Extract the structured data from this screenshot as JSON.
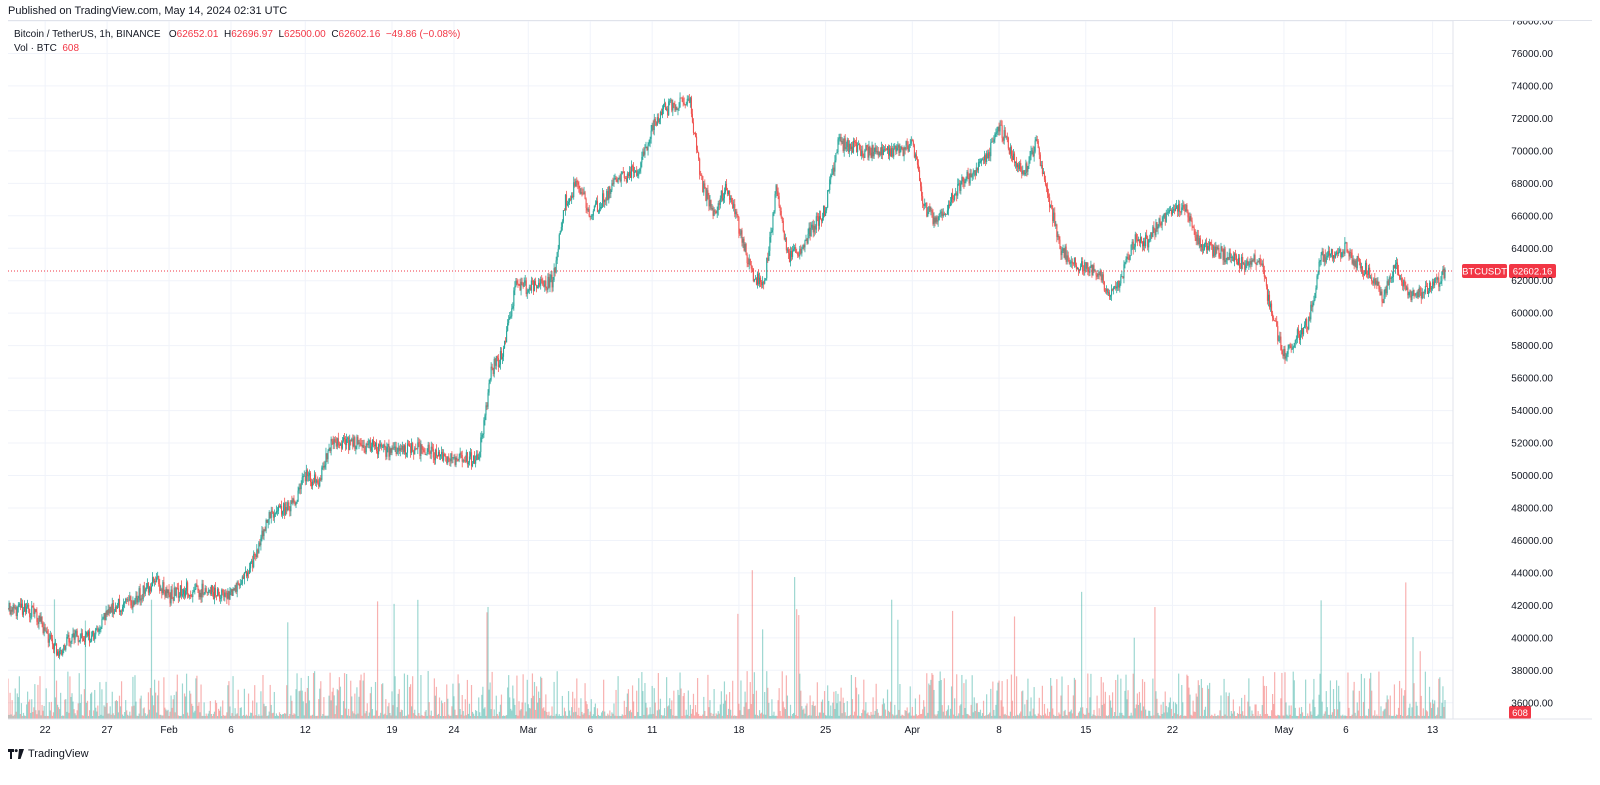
{
  "header": {
    "published": "Published on TradingView.com, May 14, 2024 02:31 UTC"
  },
  "legend": {
    "symbol": "Bitcoin / TetherUS, 1h, BINANCE",
    "open_label": "O",
    "open": "62652.01",
    "high_label": "H",
    "high": "62696.97",
    "low_label": "L",
    "low": "62500.00",
    "close_label": "C",
    "close": "62602.16",
    "change": "−49.86 (−0.08%)",
    "volume_label": "Vol · BTC",
    "volume": "608"
  },
  "footer": {
    "brand": "TradingView",
    "logo_icon": "tradingview-logo-icon"
  },
  "colors": {
    "up": "#26a69a",
    "down": "#ef5350",
    "price_tag": "#f23645",
    "grid": "#f0f3fa",
    "text": "#131722"
  },
  "chart_data": {
    "type": "candlestick",
    "symbol_tag": "BTCUSDT",
    "last_price": "62602.16",
    "last_price_value": 62602.16,
    "volume_tag": "608",
    "volume_tag_value": 608,
    "y_axis": {
      "ylim": [
        35000,
        78000
      ],
      "ticks": [
        "36000.00",
        "38000.00",
        "40000.00",
        "42000.00",
        "44000.00",
        "46000.00",
        "48000.00",
        "50000.00",
        "52000.00",
        "54000.00",
        "56000.00",
        "58000.00",
        "60000.00",
        "62000.00",
        "64000.00",
        "66000.00",
        "68000.00",
        "70000.00",
        "72000.00",
        "74000.00",
        "76000.00",
        "78000.00"
      ]
    },
    "x_axis": {
      "range": [
        "2024-01-19",
        "2024-05-14"
      ],
      "ticks": [
        {
          "label": "22",
          "date": "2024-01-22"
        },
        {
          "label": "27",
          "date": "2024-01-27"
        },
        {
          "label": "Feb",
          "date": "2024-02-01"
        },
        {
          "label": "6",
          "date": "2024-02-06"
        },
        {
          "label": "12",
          "date": "2024-02-12"
        },
        {
          "label": "19",
          "date": "2024-02-19"
        },
        {
          "label": "24",
          "date": "2024-02-24"
        },
        {
          "label": "Mar",
          "date": "2024-03-01"
        },
        {
          "label": "6",
          "date": "2024-03-06"
        },
        {
          "label": "11",
          "date": "2024-03-11"
        },
        {
          "label": "18",
          "date": "2024-03-18"
        },
        {
          "label": "25",
          "date": "2024-03-25"
        },
        {
          "label": "Apr",
          "date": "2024-04-01"
        },
        {
          "label": "8",
          "date": "2024-04-08"
        },
        {
          "label": "15",
          "date": "2024-04-15"
        },
        {
          "label": "22",
          "date": "2024-04-22"
        },
        {
          "label": "May",
          "date": "2024-05-01"
        },
        {
          "label": "6",
          "date": "2024-05-06"
        },
        {
          "label": "13",
          "date": "2024-05-13"
        }
      ]
    },
    "price_path": [
      [
        "2024-01-19",
        41800
      ],
      [
        "2024-01-21",
        41700
      ],
      [
        "2024-01-22",
        40500
      ],
      [
        "2024-01-23",
        39000
      ],
      [
        "2024-01-24",
        40000
      ],
      [
        "2024-01-26",
        40000
      ],
      [
        "2024-01-27",
        41700
      ],
      [
        "2024-01-29",
        42300
      ],
      [
        "2024-01-31",
        43500
      ],
      [
        "2024-02-01",
        42500
      ],
      [
        "2024-02-02",
        43000
      ],
      [
        "2024-02-05",
        42800
      ],
      [
        "2024-02-06",
        42700
      ],
      [
        "2024-02-08",
        45000
      ],
      [
        "2024-02-09",
        47500
      ],
      [
        "2024-02-11",
        48200
      ],
      [
        "2024-02-12",
        50000
      ],
      [
        "2024-02-13",
        49500
      ],
      [
        "2024-02-14",
        51800
      ],
      [
        "2024-02-16",
        52000
      ],
      [
        "2024-02-19",
        51500
      ],
      [
        "2024-02-21",
        51700
      ],
      [
        "2024-02-24",
        51000
      ],
      [
        "2024-02-26",
        51000
      ],
      [
        "2024-02-27",
        56500
      ],
      [
        "2024-02-28",
        57500
      ],
      [
        "2024-02-29",
        62000
      ],
      [
        "2024-03-01",
        61500
      ],
      [
        "2024-03-03",
        62000
      ],
      [
        "2024-03-04",
        67000
      ],
      [
        "2024-03-05",
        68000
      ],
      [
        "2024-03-06",
        66000
      ],
      [
        "2024-03-08",
        68000
      ],
      [
        "2024-03-10",
        69000
      ],
      [
        "2024-03-11",
        71500
      ],
      [
        "2024-03-12",
        72500
      ],
      [
        "2024-03-14",
        73300
      ],
      [
        "2024-03-15",
        68000
      ],
      [
        "2024-03-16",
        66000
      ],
      [
        "2024-03-17",
        68000
      ],
      [
        "2024-03-19",
        62500
      ],
      [
        "2024-03-20",
        61500
      ],
      [
        "2024-03-21",
        67500
      ],
      [
        "2024-03-22",
        63500
      ],
      [
        "2024-03-23",
        64000
      ],
      [
        "2024-03-25",
        66500
      ],
      [
        "2024-03-26",
        70500
      ],
      [
        "2024-03-28",
        70000
      ],
      [
        "2024-03-31",
        70000
      ],
      [
        "2024-04-01",
        70500
      ],
      [
        "2024-04-02",
        66500
      ],
      [
        "2024-04-03",
        65500
      ],
      [
        "2024-04-05",
        68000
      ],
      [
        "2024-04-07",
        69500
      ],
      [
        "2024-04-08",
        71500
      ],
      [
        "2024-04-09",
        70000
      ],
      [
        "2024-04-10",
        68500
      ],
      [
        "2024-04-11",
        70500
      ],
      [
        "2024-04-12",
        67000
      ],
      [
        "2024-04-13",
        64000
      ],
      [
        "2024-04-14",
        63000
      ],
      [
        "2024-04-15",
        63000
      ],
      [
        "2024-04-16",
        62500
      ],
      [
        "2024-04-17",
        61000
      ],
      [
        "2024-04-18",
        62500
      ],
      [
        "2024-04-19",
        64500
      ],
      [
        "2024-04-20",
        64500
      ],
      [
        "2024-04-22",
        66500
      ],
      [
        "2024-04-23",
        66500
      ],
      [
        "2024-04-24",
        64500
      ],
      [
        "2024-04-25",
        64000
      ],
      [
        "2024-04-28",
        63000
      ],
      [
        "2024-04-29",
        63500
      ],
      [
        "2024-04-30",
        60000
      ],
      [
        "2024-05-01",
        57500
      ],
      [
        "2024-05-02",
        58500
      ],
      [
        "2024-05-03",
        59500
      ],
      [
        "2024-05-04",
        63500
      ],
      [
        "2024-05-06",
        64000
      ],
      [
        "2024-05-07",
        63000
      ],
      [
        "2024-05-08",
        62500
      ],
      [
        "2024-05-09",
        61000
      ],
      [
        "2024-05-10",
        63000
      ],
      [
        "2024-05-11",
        61000
      ],
      [
        "2024-05-13",
        61500
      ],
      [
        "2024-05-14",
        62602.16
      ]
    ]
  }
}
